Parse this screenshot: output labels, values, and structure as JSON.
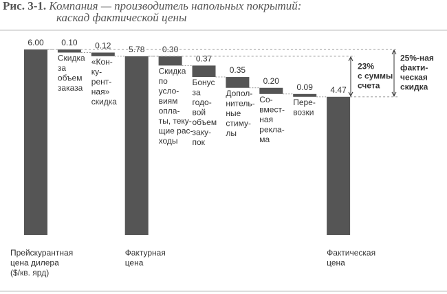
{
  "chart_data": {
    "type": "waterfall",
    "title_label": "Рис. 3-1.",
    "title_lines": [
      "Компания — производитель напольных покрытий:",
      "каскад фактической цены"
    ],
    "categories": [
      [
        "Прейскурантная",
        "цена дилера",
        "($/кв. ярд)"
      ],
      [
        "Скидка",
        "за",
        "объем",
        "заказа"
      ],
      [
        "«Кон-",
        "ку-",
        "рент-",
        "ная»",
        "скидка"
      ],
      [
        "Фактурная",
        "цена"
      ],
      [
        "Скидка",
        "по",
        "усло-",
        "виям",
        "опла-",
        "ты, теку-",
        "щие рас-",
        "ходы"
      ],
      [
        "Бонус",
        "за",
        "годо-",
        "вой",
        "объем",
        "заку-",
        "пок"
      ],
      [
        "Допол-",
        "нитель-",
        "ные",
        "стиму-",
        "лы"
      ],
      [
        "Со-",
        "вмест-",
        "ная",
        "рекла-",
        "ма"
      ],
      [
        "Пере-",
        "возки"
      ],
      [
        "Фактическая",
        "цена"
      ]
    ],
    "values": [
      6.0,
      0.1,
      0.12,
      5.78,
      0.3,
      0.37,
      0.35,
      0.2,
      0.09,
      4.47
    ],
    "value_labels": [
      "6.00",
      "0.10",
      "0.12",
      "5.78",
      "0.30",
      "0.37",
      "0.35",
      "0.20",
      "0.09",
      "4.47"
    ],
    "kinds": [
      "total",
      "decrease",
      "decrease",
      "total",
      "decrease",
      "decrease",
      "decrease",
      "decrease",
      "decrease",
      "total"
    ],
    "color": "#555555",
    "annotations": [
      {
        "lines": [
          "23%",
          "с суммы",
          "счета"
        ]
      },
      {
        "lines": [
          "25%-ная",
          "факти-",
          "ческая",
          "скидка"
        ]
      }
    ]
  }
}
